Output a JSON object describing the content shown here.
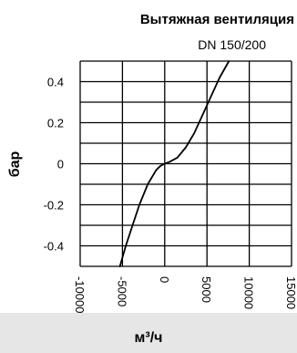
{
  "chart_data": {
    "type": "line",
    "title": "Вытяжная вентиляция",
    "subtitle": "DN 150/200",
    "xlabel": "м³/ч",
    "ylabel": "бар",
    "xlim": [
      -10000,
      15000
    ],
    "ylim": [
      -0.5,
      0.5
    ],
    "x_ticks": [
      -10000,
      -5000,
      0,
      5000,
      10000,
      15000
    ],
    "x_tick_labels": [
      "-10000",
      "-5000",
      "0",
      "5000",
      "10000",
      "15000"
    ],
    "y_ticks": [
      0.4,
      0.2,
      0,
      -0.2,
      -0.4
    ],
    "y_tick_labels": [
      "0.4",
      "0.2",
      "0",
      "-0.2",
      "-0.4"
    ],
    "grid": true,
    "series": [
      {
        "x": [
          -5300,
          -4600,
          -3800,
          -3000,
          -2000,
          -1000,
          -500,
          0,
          600,
          1500,
          2500,
          3500,
          4500,
          5500,
          6500,
          7600
        ],
        "y": [
          -0.5,
          -0.4,
          -0.3,
          -0.2,
          -0.1,
          -0.03,
          -0.01,
          0,
          0.01,
          0.03,
          0.08,
          0.15,
          0.24,
          0.33,
          0.42,
          0.5
        ]
      }
    ]
  },
  "colors": {
    "line": "#000000",
    "grid": "#000000",
    "band": "#e6e6e6"
  }
}
